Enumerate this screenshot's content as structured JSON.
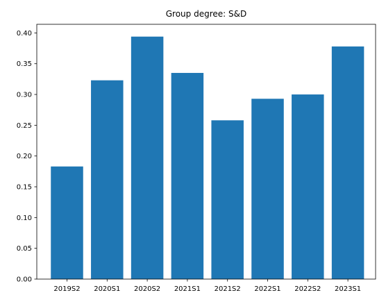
{
  "chart_data": {
    "type": "bar",
    "title": "Group degree: S&D",
    "xlabel": "",
    "ylabel": "",
    "categories": [
      "2019S2",
      "2020S1",
      "2020S2",
      "2021S1",
      "2021S2",
      "2022S1",
      "2022S2",
      "2023S1"
    ],
    "values": [
      0.183,
      0.323,
      0.394,
      0.335,
      0.258,
      0.293,
      0.3,
      0.378
    ],
    "yticks": [
      "0.00",
      "0.05",
      "0.10",
      "0.15",
      "0.20",
      "0.25",
      "0.30",
      "0.35",
      "0.40"
    ],
    "ylim": [
      0,
      0.414
    ],
    "grid": false,
    "bar_color": "#1f77b4"
  }
}
